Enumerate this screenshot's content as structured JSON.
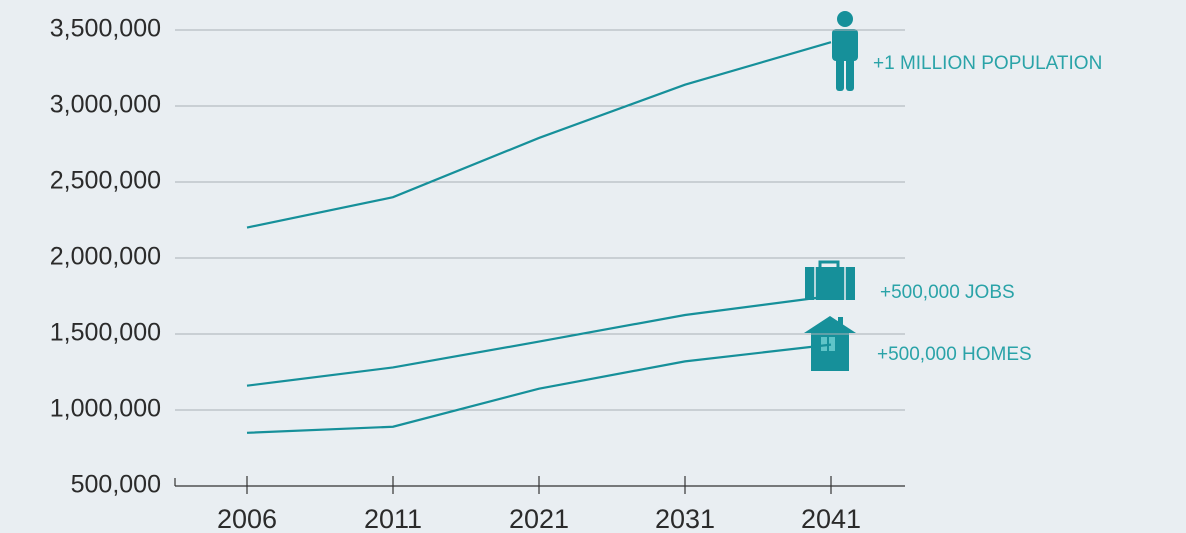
{
  "chart_data": {
    "type": "line",
    "categories": [
      "2006",
      "2011",
      "2021",
      "2031",
      "2041"
    ],
    "series": [
      {
        "name": "+1 MILLION POPULATION",
        "color": "#16909a",
        "values": [
          2200000,
          2400000,
          2790000,
          3140000,
          3420000
        ]
      },
      {
        "name": "+500,000 JOBS",
        "color": "#16909a",
        "values": [
          1160000,
          1280000,
          1450000,
          1625000,
          1750000
        ]
      },
      {
        "name": "+500,000 HOMES",
        "color": "#16909a",
        "values": [
          850000,
          890000,
          1140000,
          1320000,
          1430000
        ]
      }
    ],
    "ylim": [
      500000,
      3500000
    ],
    "yticks": [
      {
        "value": 500000,
        "label": "500,000"
      },
      {
        "value": 1000000,
        "label": "1,000,000"
      },
      {
        "value": 1500000,
        "label": "1,500,000"
      },
      {
        "value": 2000000,
        "label": "2,000,000"
      },
      {
        "value": 2500000,
        "label": "2,500,000"
      },
      {
        "value": 3000000,
        "label": "3,000,000"
      },
      {
        "value": 3500000,
        "label": "3,500,000"
      }
    ],
    "grid": true
  }
}
